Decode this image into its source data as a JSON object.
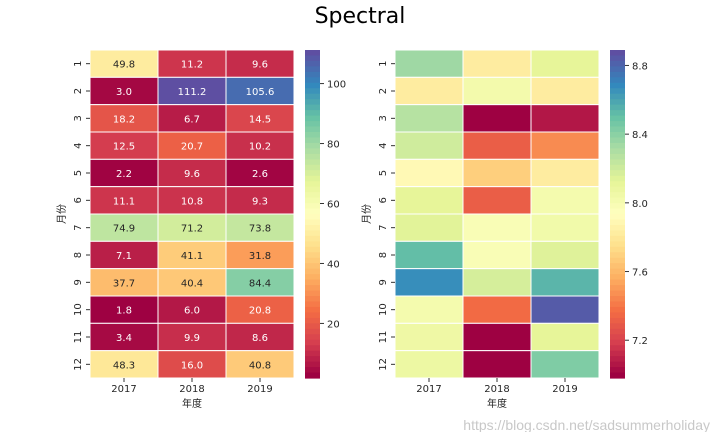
{
  "title": "Spectral",
  "watermark": "https://blog.csdn.net/sadsummerholiday",
  "colormap": [
    "#9e0142",
    "#d53e4f",
    "#f46d43",
    "#fdae61",
    "#fee08b",
    "#ffffbf",
    "#e6f598",
    "#abdda4",
    "#66c2a5",
    "#3288bd",
    "#5e4fa2"
  ],
  "chart_data": [
    {
      "type": "heatmap",
      "xlabel": "年度",
      "ylabel": "月份",
      "x": [
        "2017",
        "2018",
        "2019"
      ],
      "y": [
        "1",
        "2",
        "3",
        "4",
        "5",
        "6",
        "7",
        "8",
        "9",
        "10",
        "11",
        "12"
      ],
      "annotated": true,
      "values": [
        [
          49.8,
          11.2,
          9.6
        ],
        [
          3.0,
          111.2,
          105.6
        ],
        [
          18.2,
          6.7,
          14.5
        ],
        [
          12.5,
          20.7,
          10.2
        ],
        [
          2.2,
          9.6,
          2.6
        ],
        [
          11.1,
          10.8,
          9.3
        ],
        [
          74.9,
          71.2,
          73.8
        ],
        [
          7.1,
          41.1,
          31.8
        ],
        [
          37.7,
          40.4,
          84.4
        ],
        [
          1.8,
          6.0,
          20.8
        ],
        [
          3.4,
          9.9,
          8.6
        ],
        [
          48.3,
          16.0,
          40.8
        ]
      ],
      "vlim": [
        1.8,
        111.2
      ],
      "colorbar_ticks": [
        20,
        40,
        60,
        80,
        100
      ]
    },
    {
      "type": "heatmap",
      "xlabel": "年度",
      "ylabel": "月份",
      "x": [
        "2017",
        "2018",
        "2019"
      ],
      "y": [
        "1",
        "2",
        "3",
        "4",
        "5",
        "6",
        "7",
        "8",
        "9",
        "10",
        "11",
        "12"
      ],
      "annotated": false,
      "values": [
        [
          8.35,
          7.82,
          8.12
        ],
        [
          7.82,
          8.03,
          7.82
        ],
        [
          8.28,
          6.98,
          7.05
        ],
        [
          8.2,
          7.3,
          7.45
        ],
        [
          7.9,
          7.68,
          7.82
        ],
        [
          8.12,
          7.3,
          8.02
        ],
        [
          8.14,
          7.98,
          8.04
        ],
        [
          8.52,
          7.98,
          8.15
        ],
        [
          8.68,
          8.18,
          8.55
        ],
        [
          8.02,
          7.35,
          8.85
        ],
        [
          8.06,
          6.98,
          8.12
        ],
        [
          8.07,
          6.98,
          8.44
        ]
      ],
      "vlim": [
        6.98,
        8.89
      ],
      "colorbar_ticks": [
        "7.2",
        "7.6",
        "8.0",
        "8.4",
        "8.8"
      ]
    }
  ]
}
